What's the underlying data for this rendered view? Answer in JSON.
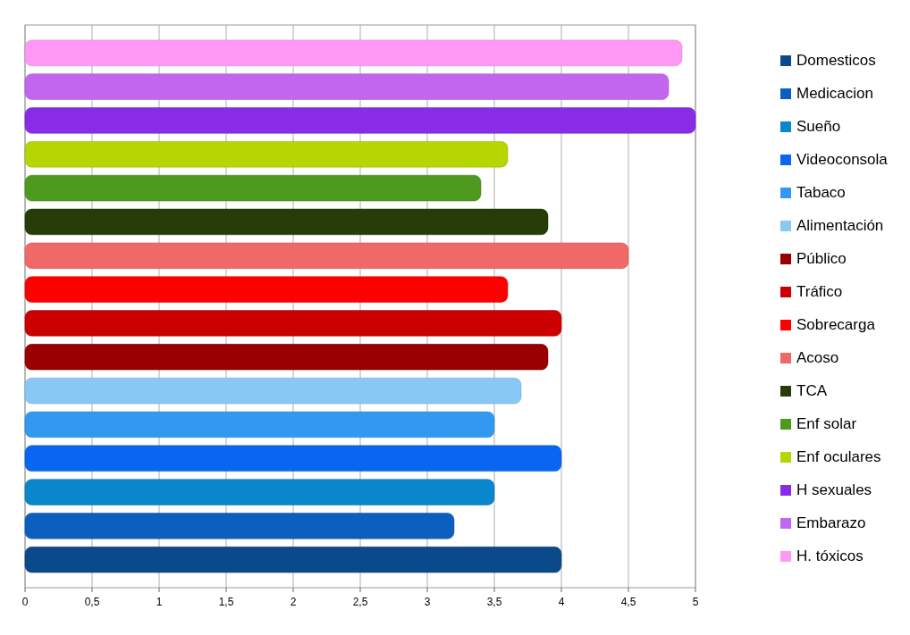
{
  "chart_data": {
    "type": "bar",
    "orientation": "horizontal",
    "categories": [
      null
    ],
    "xlim": [
      0,
      5
    ],
    "xticks": [
      0,
      {
        "value": 0.5,
        "label": "0,5"
      },
      1,
      {
        "value": 1.5,
        "label": "1,5"
      },
      2,
      {
        "value": 2.5,
        "label": "2,5"
      },
      3,
      {
        "value": 3.5,
        "label": "3,5"
      },
      4,
      {
        "value": 4.5,
        "label": "4,5"
      },
      5
    ],
    "grid": "x",
    "legend": "right",
    "series": [
      {
        "name": "Domesticos",
        "color": "#0a4a8a",
        "values": [
          4
        ]
      },
      {
        "name": "Medicacion",
        "color": "#0d5fbf",
        "values": [
          3.2
        ]
      },
      {
        "name": "Sueño",
        "color": "#0a86cc",
        "values": [
          3.5
        ]
      },
      {
        "name": "Videoconsola",
        "color": "#0a66f0",
        "values": [
          4
        ]
      },
      {
        "name": "Tabaco",
        "color": "#3399f0",
        "values": [
          3.5
        ]
      },
      {
        "name": "Alimentación",
        "color": "#88c8f5",
        "values": [
          3.7
        ]
      },
      {
        "name": "Público",
        "color": "#990000",
        "values": [
          3.9
        ]
      },
      {
        "name": "Tráfico",
        "color": "#cc0000",
        "values": [
          4
        ]
      },
      {
        "name": "Sobrecarga",
        "color": "#ff0000",
        "values": [
          3.6
        ]
      },
      {
        "name": "Acoso",
        "color": "#f06868",
        "values": [
          4.5
        ]
      },
      {
        "name": "TCA",
        "color": "#263d0a",
        "values": [
          3.9
        ]
      },
      {
        "name": "Enf  solar",
        "color": "#4e9a1e",
        "values": [
          3.4
        ]
      },
      {
        "name": "Enf  oculares",
        "color": "#b5d600",
        "values": [
          3.6
        ]
      },
      {
        "name": "H sexuales",
        "color": "#8a2be8",
        "values": [
          5
        ]
      },
      {
        "name": "Embarazo",
        "color": "#c266f0",
        "values": [
          4.8
        ]
      },
      {
        "name": "H. tóxicos",
        "color": "#ff99f5",
        "values": [
          4.9
        ]
      }
    ]
  }
}
